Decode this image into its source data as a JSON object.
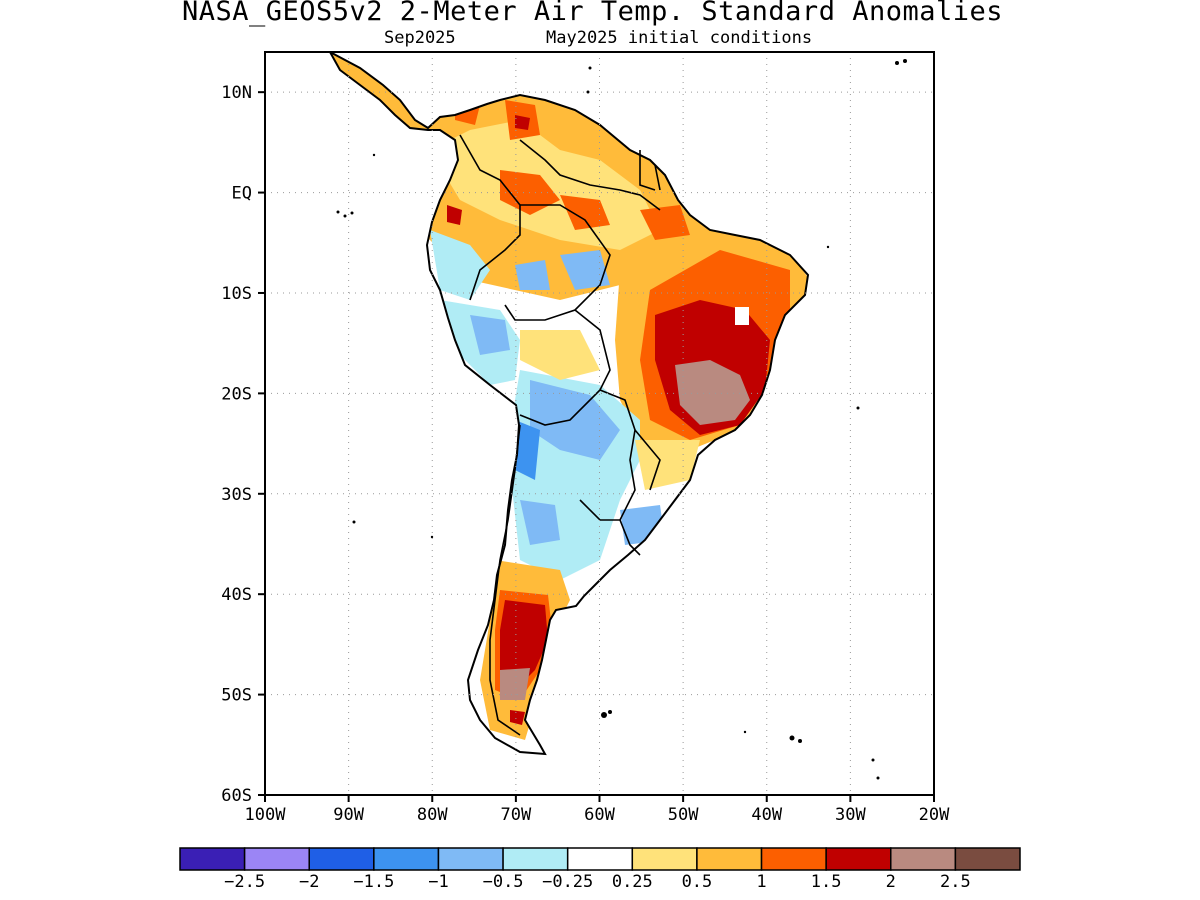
{
  "title": "NASA_GEOS5v2 2-Meter Air Temp. Standard Anomalies",
  "subtitle_left": "Sep2025",
  "subtitle_right": "May2025 initial conditions",
  "axes": {
    "lat_labels": [
      "10N",
      "EQ",
      "10S",
      "20S",
      "30S",
      "40S",
      "50S",
      "60S"
    ],
    "lat_values": [
      10,
      0,
      -10,
      -20,
      -30,
      -40,
      -50,
      -60
    ],
    "lon_labels": [
      "100W",
      "90W",
      "80W",
      "70W",
      "60W",
      "50W",
      "40W",
      "30W",
      "20W"
    ],
    "lon_values": [
      -100,
      -90,
      -80,
      -70,
      -60,
      -50,
      -40,
      -30,
      -20
    ],
    "lat_range": [
      -60,
      14
    ],
    "lon_range": [
      -100,
      -20
    ],
    "grid": "dotted"
  },
  "legend": {
    "colors": [
      "#3a1fb5",
      "#9b85f5",
      "#1f5fe6",
      "#3d93f0",
      "#7fbaf5",
      "#b0ecf5",
      "#ffffff",
      "#ffe27a",
      "#ffbb3a",
      "#fc5f00",
      "#c00000",
      "#b98a80",
      "#7a4c40"
    ],
    "labels": [
      "−2.5",
      "−2",
      "−1.5",
      "−1",
      "−0.5",
      "−0.25",
      "0.25",
      "0.5",
      "1",
      "1.5",
      "2",
      "2.5"
    ]
  },
  "regions": [
    {
      "name": "northern-south-america-warm",
      "level": "0.5 to 1.5",
      "color": "#ffbb3a"
    },
    {
      "name": "brazil-core-hot",
      "level": "1.5 to 2.5",
      "color": "#c00000"
    },
    {
      "name": "brazil-extreme",
      "level": "2 to 2.5",
      "color": "#b98a80"
    },
    {
      "name": "andes-cool",
      "level": "-1 to -0.25",
      "color": "#7fbaf5"
    },
    {
      "name": "patagonia-hot",
      "level": "1.5 to 2.5",
      "color": "#c00000"
    }
  ]
}
